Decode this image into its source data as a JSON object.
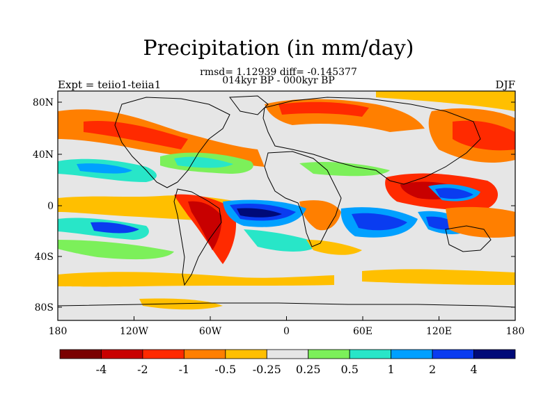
{
  "title": "Precipitation (in mm/day)",
  "stats_line": "rmsd= 1.12939 diff= -0.145377",
  "period_line": "014kyr BP - 000kyr BP",
  "left_label": "Expt = teiio1-teiia1",
  "right_label": "DJF",
  "x_ticks": [
    "180",
    "120W",
    "60W",
    "0",
    "60E",
    "120E",
    "180"
  ],
  "y_ticks": [
    "80N",
    "40N",
    "0",
    "40S",
    "80S"
  ],
  "colorbar": {
    "colors": [
      "#7a0000",
      "#c80000",
      "#ff2a00",
      "#ff7f00",
      "#ffbf00",
      "#e6e6e6",
      "#7cf05a",
      "#28e6c8",
      "#00a0ff",
      "#0a3cf0",
      "#000a78"
    ],
    "labels": [
      "-4",
      "-2",
      "-1",
      "-0.5",
      "-0.25",
      "0.25",
      "0.5",
      "1",
      "2",
      "4"
    ]
  }
}
